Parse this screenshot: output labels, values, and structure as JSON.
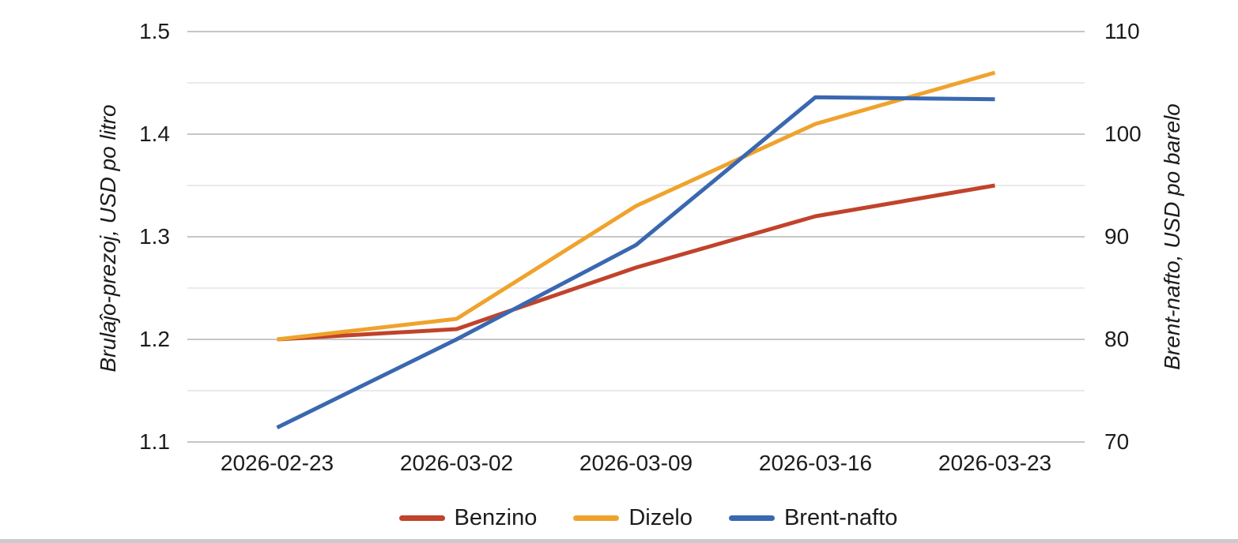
{
  "chart_data": {
    "type": "line",
    "x": [
      "2026-02-23",
      "2026-03-02",
      "2026-03-09",
      "2026-03-16",
      "2026-03-23"
    ],
    "series": [
      {
        "name": "Benzino",
        "axis": "left",
        "color": "#c0432b",
        "values": [
          1.2,
          1.21,
          1.27,
          1.32,
          1.35
        ]
      },
      {
        "name": "Dizelo",
        "axis": "left",
        "color": "#efa32c",
        "values": [
          1.2,
          1.22,
          1.33,
          1.41,
          1.46
        ]
      },
      {
        "name": "Brent-nafto",
        "axis": "right",
        "color": "#3a68b0",
        "values": [
          71.4,
          80.0,
          89.2,
          103.6,
          103.4
        ]
      }
    ],
    "left_axis": {
      "label": "Brulaĵo-prezoj, USD po litro",
      "min": 1.1,
      "max": 1.5,
      "tick_step": 0.1,
      "grid_step": 0.05,
      "ticks": [
        "1.1",
        "1.2",
        "1.3",
        "1.4",
        "1.5"
      ]
    },
    "right_axis": {
      "label": "Brent-nafto, USD po barelo",
      "min": 70,
      "max": 110,
      "tick_step": 10,
      "ticks": [
        "70",
        "80",
        "90",
        "100",
        "110"
      ]
    },
    "grid": true,
    "legend_position": "bottom",
    "colors": {
      "major_grid": "#c6c6c6",
      "minor_grid": "#e4e4e4",
      "text": "#1c1c1c"
    }
  }
}
